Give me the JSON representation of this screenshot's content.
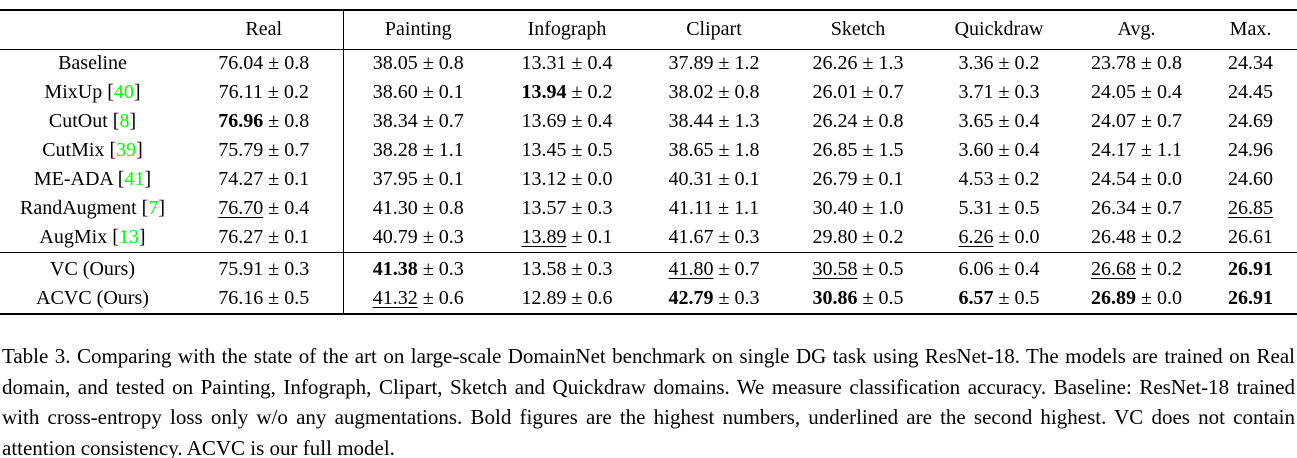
{
  "colors": {
    "background": "#ffffff",
    "text": "#000000",
    "citation_green": "#00ff00",
    "rule": "#000000"
  },
  "table": {
    "columns": [
      "",
      "Real",
      "Painting",
      "Infograph",
      "Clipart",
      "Sketch",
      "Quickdraw",
      "Avg.",
      "Max."
    ],
    "plus_minus_symbol": "±",
    "rows": [
      {
        "label": "Baseline",
        "cite": null,
        "cells": [
          {
            "main": "76.04",
            "pm": "0.8",
            "fmt": "normal"
          },
          {
            "main": "38.05",
            "pm": "0.8",
            "fmt": "normal"
          },
          {
            "main": "13.31",
            "pm": "0.4",
            "fmt": "normal"
          },
          {
            "main": "37.89",
            "pm": "1.2",
            "fmt": "normal"
          },
          {
            "main": "26.26",
            "pm": "1.3",
            "fmt": "normal"
          },
          {
            "main": "3.36",
            "pm": "0.2",
            "fmt": "normal"
          },
          {
            "main": "23.78",
            "pm": "0.8",
            "fmt": "normal"
          },
          {
            "main": "24.34",
            "pm": null,
            "fmt": "normal"
          }
        ]
      },
      {
        "label": "MixUp",
        "cite": "40",
        "cells": [
          {
            "main": "76.11",
            "pm": "0.2",
            "fmt": "normal"
          },
          {
            "main": "38.60",
            "pm": "0.1",
            "fmt": "normal"
          },
          {
            "main": "13.94",
            "pm": "0.2",
            "fmt": "bold"
          },
          {
            "main": "38.02",
            "pm": "0.8",
            "fmt": "normal"
          },
          {
            "main": "26.01",
            "pm": "0.7",
            "fmt": "normal"
          },
          {
            "main": "3.71",
            "pm": "0.3",
            "fmt": "normal"
          },
          {
            "main": "24.05",
            "pm": "0.4",
            "fmt": "normal"
          },
          {
            "main": "24.45",
            "pm": null,
            "fmt": "normal"
          }
        ]
      },
      {
        "label": "CutOut",
        "cite": "8",
        "cells": [
          {
            "main": "76.96",
            "pm": "0.8",
            "fmt": "bold"
          },
          {
            "main": "38.34",
            "pm": "0.7",
            "fmt": "normal"
          },
          {
            "main": "13.69",
            "pm": "0.4",
            "fmt": "normal"
          },
          {
            "main": "38.44",
            "pm": "1.3",
            "fmt": "normal"
          },
          {
            "main": "26.24",
            "pm": "0.8",
            "fmt": "normal"
          },
          {
            "main": "3.65",
            "pm": "0.4",
            "fmt": "normal"
          },
          {
            "main": "24.07",
            "pm": "0.7",
            "fmt": "normal"
          },
          {
            "main": "24.69",
            "pm": null,
            "fmt": "normal"
          }
        ]
      },
      {
        "label": "CutMix",
        "cite": "39",
        "cells": [
          {
            "main": "75.79",
            "pm": "0.7",
            "fmt": "normal"
          },
          {
            "main": "38.28",
            "pm": "1.1",
            "fmt": "normal"
          },
          {
            "main": "13.45",
            "pm": "0.5",
            "fmt": "normal"
          },
          {
            "main": "38.65",
            "pm": "1.8",
            "fmt": "normal"
          },
          {
            "main": "26.85",
            "pm": "1.5",
            "fmt": "normal"
          },
          {
            "main": "3.60",
            "pm": "0.4",
            "fmt": "normal"
          },
          {
            "main": "24.17",
            "pm": "1.1",
            "fmt": "normal"
          },
          {
            "main": "24.96",
            "pm": null,
            "fmt": "normal"
          }
        ]
      },
      {
        "label": "ME-ADA",
        "cite": "41",
        "cells": [
          {
            "main": "74.27",
            "pm": "0.1",
            "fmt": "normal"
          },
          {
            "main": "37.95",
            "pm": "0.1",
            "fmt": "normal"
          },
          {
            "main": "13.12",
            "pm": "0.0",
            "fmt": "normal"
          },
          {
            "main": "40.31",
            "pm": "0.1",
            "fmt": "normal"
          },
          {
            "main": "26.79",
            "pm": "0.1",
            "fmt": "normal"
          },
          {
            "main": "4.53",
            "pm": "0.2",
            "fmt": "normal"
          },
          {
            "main": "24.54",
            "pm": "0.0",
            "fmt": "normal"
          },
          {
            "main": "24.60",
            "pm": null,
            "fmt": "normal"
          }
        ]
      },
      {
        "label": "RandAugment",
        "cite": "7",
        "cells": [
          {
            "main": "76.70",
            "pm": "0.4",
            "fmt": "underline"
          },
          {
            "main": "41.30",
            "pm": "0.8",
            "fmt": "normal"
          },
          {
            "main": "13.57",
            "pm": "0.3",
            "fmt": "normal"
          },
          {
            "main": "41.11",
            "pm": "1.1",
            "fmt": "normal"
          },
          {
            "main": "30.40",
            "pm": "1.0",
            "fmt": "normal"
          },
          {
            "main": "5.31",
            "pm": "0.5",
            "fmt": "normal"
          },
          {
            "main": "26.34",
            "pm": "0.7",
            "fmt": "normal"
          },
          {
            "main": "26.85",
            "pm": null,
            "fmt": "underline"
          }
        ]
      },
      {
        "label": "AugMix",
        "cite": "13",
        "cells": [
          {
            "main": "76.27",
            "pm": "0.1",
            "fmt": "normal"
          },
          {
            "main": "40.79",
            "pm": "0.3",
            "fmt": "normal"
          },
          {
            "main": "13.89",
            "pm": "0.1",
            "fmt": "underline"
          },
          {
            "main": "41.67",
            "pm": "0.3",
            "fmt": "normal"
          },
          {
            "main": "29.80",
            "pm": "0.2",
            "fmt": "normal"
          },
          {
            "main": "6.26",
            "pm": "0.0",
            "fmt": "underline"
          },
          {
            "main": "26.48",
            "pm": "0.2",
            "fmt": "normal"
          },
          {
            "main": "26.61",
            "pm": null,
            "fmt": "normal"
          }
        ]
      }
    ],
    "ours_rows": [
      {
        "label": "VC (Ours)",
        "cite": null,
        "cells": [
          {
            "main": "75.91",
            "pm": "0.3",
            "fmt": "normal"
          },
          {
            "main": "41.38",
            "pm": "0.3",
            "fmt": "bold"
          },
          {
            "main": "13.58",
            "pm": "0.3",
            "fmt": "normal"
          },
          {
            "main": "41.80",
            "pm": "0.7",
            "fmt": "underline"
          },
          {
            "main": "30.58",
            "pm": "0.5",
            "fmt": "underline"
          },
          {
            "main": "6.06",
            "pm": "0.4",
            "fmt": "normal"
          },
          {
            "main": "26.68",
            "pm": "0.2",
            "fmt": "underline"
          },
          {
            "main": "26.91",
            "pm": null,
            "fmt": "bold"
          }
        ]
      },
      {
        "label": "ACVC (Ours)",
        "cite": null,
        "cells": [
          {
            "main": "76.16",
            "pm": "0.5",
            "fmt": "normal"
          },
          {
            "main": "41.32",
            "pm": "0.6",
            "fmt": "underline"
          },
          {
            "main": "12.89",
            "pm": "0.6",
            "fmt": "normal"
          },
          {
            "main": "42.79",
            "pm": "0.3",
            "fmt": "bold"
          },
          {
            "main": "30.86",
            "pm": "0.5",
            "fmt": "bold"
          },
          {
            "main": "6.57",
            "pm": "0.5",
            "fmt": "bold"
          },
          {
            "main": "26.89",
            "pm": "0.0",
            "fmt": "bold"
          },
          {
            "main": "26.91",
            "pm": null,
            "fmt": "bold"
          }
        ]
      }
    ]
  },
  "caption": "Table 3. Comparing with the state of the art on large-scale DomainNet benchmark on single DG task using ResNet-18. The models are trained on Real domain, and tested on Painting, Infograph, Clipart, Sketch and Quickdraw domains. We measure classification accuracy. Baseline: ResNet-18 trained with cross-entropy loss only w/o any augmentations. Bold figures are the highest numbers, underlined are the second highest. VC does not contain attention consistency. ACVC is our full model."
}
